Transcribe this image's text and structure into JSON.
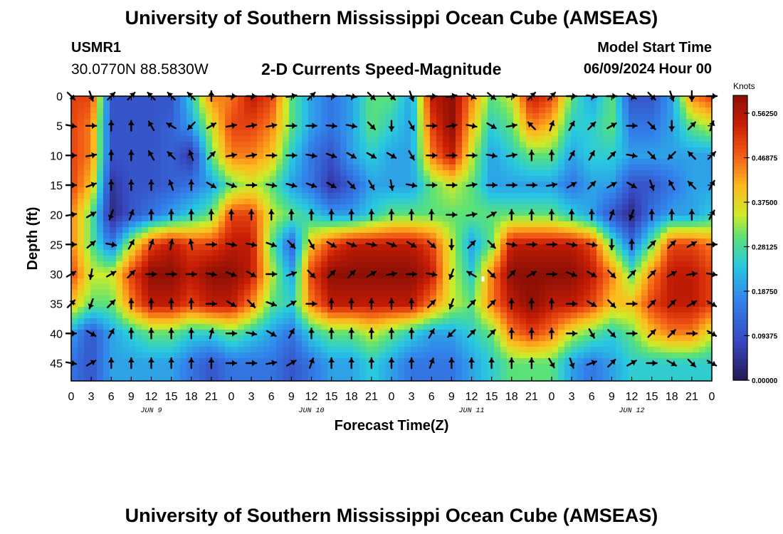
{
  "header": {
    "title": "University of Southern Mississippi Ocean Cube (AMSEAS)",
    "station_id": "USMR1",
    "station_coords": "30.0770N  88.5830W",
    "plot_title": "2-D Currents Speed-Magnitude",
    "model_start_label": "Model Start Time",
    "model_start_value": "06/09/2024 Hour 00"
  },
  "footer": {
    "title": "University of Southern Mississippi Ocean Cube (AMSEAS)"
  },
  "chart_data": {
    "type": "heatmap",
    "title": "2-D Currents Speed-Magnitude",
    "xlabel": "Forecast Time(Z)",
    "ylabel": "Depth (ft)",
    "x_hours": [
      0,
      3,
      6,
      9,
      12,
      15,
      18,
      21,
      24,
      27,
      30,
      33,
      36,
      39,
      42,
      45,
      48,
      51,
      54,
      57,
      60,
      63,
      66,
      69,
      72,
      75,
      78,
      81,
      84,
      87,
      90,
      93,
      96
    ],
    "x_tick_labels": [
      "0",
      "3",
      "6",
      "9",
      "12",
      "15",
      "18",
      "21",
      "0",
      "3",
      "6",
      "9",
      "12",
      "15",
      "18",
      "21",
      "0",
      "3",
      "6",
      "9",
      "12",
      "15",
      "18",
      "21",
      "0",
      "3",
      "6",
      "9",
      "12",
      "15",
      "18",
      "21",
      "0"
    ],
    "date_labels": [
      {
        "label": "JUN 9",
        "hour": 12
      },
      {
        "label": "JUN 10",
        "hour": 36
      },
      {
        "label": "JUN 11",
        "hour": 60
      },
      {
        "label": "JUN 12",
        "hour": 84
      }
    ],
    "depths_ft": [
      0,
      5,
      10,
      15,
      20,
      25,
      30,
      35,
      40,
      45
    ],
    "y_tick_labels": [
      "0",
      "5",
      "10",
      "15",
      "20",
      "25",
      "30",
      "35",
      "40",
      "45"
    ],
    "ylim": [
      0,
      48
    ],
    "xlim": [
      0,
      96
    ],
    "colorbar": {
      "unit": "Knots",
      "range": [
        0,
        0.6
      ],
      "tick_values": [
        0.0,
        0.09375,
        0.1875,
        0.28125,
        0.375,
        0.46875,
        0.5625
      ],
      "tick_labels": [
        "0.00000",
        "0.09375",
        "0.18750",
        "0.28125",
        "0.37500",
        "0.46875",
        "0.56250"
      ]
    },
    "speed_knots": [
      [
        0.5,
        0.5,
        0.1,
        0.1,
        0.1,
        0.1,
        0.25,
        0.45,
        0.45,
        0.55,
        0.5,
        0.3,
        0.2,
        0.15,
        0.2,
        0.3,
        0.3,
        0.2,
        0.55,
        0.6,
        0.45,
        0.3,
        0.35,
        0.55,
        0.5,
        0.3,
        0.2,
        0.3,
        0.1,
        0.1,
        0.2,
        0.45,
        0.5
      ],
      [
        0.5,
        0.45,
        0.1,
        0.1,
        0.1,
        0.12,
        0.2,
        0.35,
        0.5,
        0.5,
        0.45,
        0.3,
        0.2,
        0.15,
        0.2,
        0.3,
        0.25,
        0.2,
        0.5,
        0.6,
        0.4,
        0.25,
        0.3,
        0.45,
        0.4,
        0.25,
        0.25,
        0.3,
        0.15,
        0.15,
        0.2,
        0.3,
        0.35
      ],
      [
        0.5,
        0.45,
        0.1,
        0.1,
        0.1,
        0.12,
        0.05,
        0.3,
        0.45,
        0.45,
        0.4,
        0.25,
        0.15,
        0.1,
        0.2,
        0.25,
        0.2,
        0.2,
        0.45,
        0.55,
        0.35,
        0.2,
        0.25,
        0.3,
        0.3,
        0.2,
        0.25,
        0.25,
        0.2,
        0.2,
        0.2,
        0.2,
        0.2
      ],
      [
        0.5,
        0.4,
        0.05,
        0.1,
        0.1,
        0.12,
        0.15,
        0.2,
        0.3,
        0.35,
        0.3,
        0.2,
        0.15,
        0.05,
        0.12,
        0.2,
        0.2,
        0.2,
        0.3,
        0.35,
        0.3,
        0.2,
        0.2,
        0.2,
        0.2,
        0.15,
        0.2,
        0.2,
        0.1,
        0.1,
        0.15,
        0.2,
        0.2
      ],
      [
        0.45,
        0.3,
        0.03,
        0.1,
        0.15,
        0.2,
        0.25,
        0.3,
        0.5,
        0.5,
        0.35,
        0.3,
        0.25,
        0.2,
        0.2,
        0.25,
        0.3,
        0.3,
        0.3,
        0.3,
        0.3,
        0.3,
        0.3,
        0.3,
        0.3,
        0.25,
        0.2,
        0.1,
        0.03,
        0.15,
        0.2,
        0.2,
        0.25
      ],
      [
        0.45,
        0.3,
        0.15,
        0.35,
        0.5,
        0.55,
        0.5,
        0.5,
        0.55,
        0.55,
        0.3,
        0.12,
        0.4,
        0.5,
        0.55,
        0.55,
        0.55,
        0.55,
        0.5,
        0.35,
        0.2,
        0.3,
        0.55,
        0.55,
        0.55,
        0.55,
        0.5,
        0.3,
        0.15,
        0.3,
        0.5,
        0.5,
        0.45
      ],
      [
        0.5,
        0.35,
        0.35,
        0.5,
        0.6,
        0.6,
        0.55,
        0.6,
        0.6,
        0.55,
        0.35,
        0.2,
        0.5,
        0.6,
        0.6,
        0.6,
        0.6,
        0.6,
        0.55,
        0.35,
        0.25,
        0.45,
        0.6,
        0.6,
        0.6,
        0.6,
        0.55,
        0.45,
        0.3,
        0.45,
        0.55,
        0.55,
        0.5
      ],
      [
        0.4,
        0.3,
        0.3,
        0.45,
        0.55,
        0.55,
        0.5,
        0.55,
        0.55,
        0.45,
        0.3,
        0.25,
        0.45,
        0.55,
        0.55,
        0.55,
        0.55,
        0.55,
        0.45,
        0.35,
        0.3,
        0.45,
        0.55,
        0.6,
        0.55,
        0.55,
        0.5,
        0.4,
        0.4,
        0.5,
        0.55,
        0.55,
        0.5
      ],
      [
        0.2,
        0.1,
        0.2,
        0.25,
        0.3,
        0.3,
        0.25,
        0.25,
        0.3,
        0.25,
        0.2,
        0.15,
        0.25,
        0.3,
        0.3,
        0.35,
        0.3,
        0.25,
        0.2,
        0.2,
        0.25,
        0.3,
        0.45,
        0.5,
        0.45,
        0.35,
        0.3,
        0.25,
        0.3,
        0.4,
        0.45,
        0.45,
        0.35
      ],
      [
        0.15,
        0.1,
        0.2,
        0.2,
        0.2,
        0.2,
        0.15,
        0.1,
        0.15,
        0.15,
        0.15,
        0.1,
        0.15,
        0.2,
        0.2,
        0.25,
        0.2,
        0.15,
        0.15,
        0.15,
        0.2,
        0.25,
        0.3,
        0.3,
        0.3,
        0.2,
        0.15,
        0.2,
        0.25,
        0.25,
        0.25,
        0.25,
        0.25
      ]
    ],
    "direction_deg": [
      [
        135,
        160,
        45,
        45,
        315,
        315,
        315,
        0,
        90,
        90,
        90,
        80,
        45,
        90,
        100,
        135,
        135,
        160,
        90,
        80,
        120,
        130,
        80,
        45,
        45,
        90,
        100,
        90,
        120,
        135,
        160,
        180,
        90
      ],
      [
        100,
        90,
        0,
        0,
        330,
        300,
        225,
        60,
        80,
        80,
        80,
        90,
        90,
        95,
        100,
        135,
        180,
        150,
        90,
        80,
        100,
        120,
        80,
        315,
        20,
        30,
        45,
        60,
        90,
        135,
        180,
        45,
        20
      ],
      [
        90,
        80,
        0,
        0,
        330,
        315,
        340,
        45,
        80,
        80,
        90,
        90,
        100,
        110,
        120,
        120,
        120,
        150,
        90,
        90,
        90,
        100,
        80,
        0,
        0,
        30,
        30,
        45,
        100,
        135,
        225,
        315,
        45
      ],
      [
        90,
        70,
        0,
        0,
        0,
        340,
        0,
        120,
        110,
        90,
        100,
        105,
        110,
        120,
        135,
        150,
        170,
        100,
        90,
        90,
        80,
        90,
        90,
        90,
        80,
        60,
        45,
        60,
        120,
        160,
        330,
        315,
        30
      ],
      [
        80,
        60,
        200,
        20,
        0,
        0,
        0,
        0,
        0,
        0,
        0,
        0,
        0,
        0,
        0,
        0,
        0,
        0,
        0,
        90,
        80,
        60,
        0,
        0,
        0,
        0,
        0,
        20,
        200,
        0,
        0,
        0,
        30
      ],
      [
        90,
        50,
        100,
        30,
        20,
        10,
        350,
        90,
        100,
        100,
        110,
        135,
        150,
        120,
        110,
        100,
        110,
        120,
        130,
        180,
        45,
        135,
        100,
        90,
        90,
        100,
        100,
        180,
        0,
        45,
        45,
        60,
        90
      ],
      [
        60,
        190,
        60,
        45,
        90,
        90,
        90,
        100,
        110,
        120,
        90,
        70,
        135,
        45,
        45,
        60,
        80,
        90,
        100,
        200,
        300,
        135,
        45,
        60,
        90,
        110,
        120,
        135,
        45,
        45,
        60,
        80,
        100
      ],
      [
        45,
        200,
        45,
        0,
        0,
        0,
        0,
        90,
        120,
        135,
        110,
        60,
        90,
        0,
        0,
        0,
        0,
        0,
        45,
        200,
        45,
        45,
        0,
        0,
        0,
        90,
        120,
        135,
        90,
        45,
        45,
        60,
        120
      ],
      [
        90,
        120,
        30,
        0,
        0,
        0,
        0,
        15,
        90,
        100,
        120,
        30,
        0,
        0,
        0,
        0,
        0,
        0,
        30,
        225,
        45,
        45,
        0,
        0,
        0,
        90,
        150,
        135,
        90,
        45,
        45,
        90,
        120
      ],
      [
        100,
        60,
        0,
        0,
        0,
        0,
        0,
        0,
        90,
        90,
        80,
        60,
        20,
        0,
        0,
        0,
        0,
        0,
        20,
        0,
        0,
        0,
        0,
        0,
        150,
        160,
        70,
        45,
        60,
        90,
        120,
        135,
        120
      ]
    ]
  }
}
